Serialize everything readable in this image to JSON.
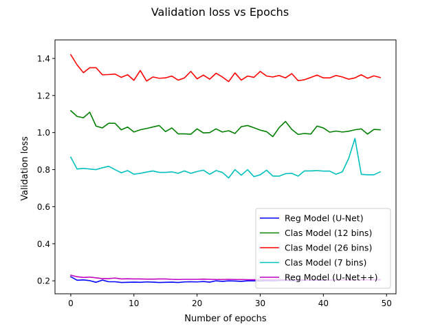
{
  "chart_data": {
    "type": "line",
    "title": "Validation loss vs Epochs",
    "xlabel": "Number of epochs",
    "ylabel": "Validation loss",
    "xlim": [
      -2.5,
      51.5
    ],
    "ylim": [
      0.13,
      1.5
    ],
    "xticks": [
      0,
      10,
      20,
      30,
      40,
      50
    ],
    "yticks": [
      0.2,
      0.4,
      0.6,
      0.8,
      1.0,
      1.2,
      1.4
    ],
    "xtick_labels": [
      "0",
      "10",
      "20",
      "30",
      "40",
      "50"
    ],
    "ytick_labels": [
      "0.2",
      "0.4",
      "0.6",
      "0.8",
      "1.0",
      "1.2",
      "1.4"
    ],
    "grid": false,
    "legend_position": "lower-right",
    "x": [
      0,
      1,
      2,
      3,
      4,
      5,
      6,
      7,
      8,
      9,
      10,
      11,
      12,
      13,
      14,
      15,
      16,
      17,
      18,
      19,
      20,
      21,
      22,
      23,
      24,
      25,
      26,
      27,
      28,
      29,
      30,
      31,
      32,
      33,
      34,
      35,
      36,
      37,
      38,
      39,
      40,
      41,
      42,
      43,
      44,
      45,
      46,
      47,
      48,
      49
    ],
    "series": [
      {
        "name": "Reg Model (U-Net)",
        "color": "#0000ff",
        "values": [
          0.222,
          0.203,
          0.205,
          0.201,
          0.192,
          0.204,
          0.195,
          0.195,
          0.191,
          0.192,
          0.193,
          0.192,
          0.194,
          0.193,
          0.191,
          0.192,
          0.193,
          0.191,
          0.194,
          0.195,
          0.194,
          0.196,
          0.193,
          0.2,
          0.197,
          0.2,
          0.199,
          0.197,
          0.2,
          0.2,
          0.199,
          0.201,
          0.2,
          0.202,
          0.203,
          0.201,
          0.202,
          0.203,
          0.203,
          0.204,
          0.203,
          0.205,
          0.204,
          0.206,
          0.205,
          0.205,
          0.206,
          0.206,
          0.207,
          0.207
        ]
      },
      {
        "name": "Clas Model (12 bins)",
        "color": "#008000",
        "values": [
          1.118,
          1.087,
          1.08,
          1.11,
          1.035,
          1.025,
          1.05,
          1.05,
          1.015,
          1.03,
          1.003,
          1.015,
          1.022,
          1.03,
          1.038,
          1.005,
          1.025,
          0.993,
          0.993,
          0.991,
          1.02,
          0.998,
          1.0,
          1.02,
          1.003,
          1.01,
          0.995,
          1.032,
          1.038,
          1.026,
          1.013,
          1.005,
          0.978,
          1.027,
          1.06,
          1.017,
          0.99,
          0.995,
          0.992,
          1.035,
          1.025,
          1.002,
          1.008,
          1.003,
          1.007,
          1.015,
          1.02,
          0.992,
          1.017,
          1.015
        ]
      },
      {
        "name": "Clas Model (26 bins)",
        "color": "#ff0000",
        "values": [
          1.42,
          1.365,
          1.323,
          1.35,
          1.35,
          1.312,
          1.313,
          1.316,
          1.298,
          1.312,
          1.282,
          1.335,
          1.278,
          1.3,
          1.293,
          1.295,
          1.305,
          1.283,
          1.295,
          1.33,
          1.29,
          1.31,
          1.288,
          1.32,
          1.3,
          1.275,
          1.322,
          1.283,
          1.305,
          1.298,
          1.33,
          1.305,
          1.3,
          1.308,
          1.295,
          1.318,
          1.28,
          1.285,
          1.297,
          1.31,
          1.295,
          1.295,
          1.308,
          1.3,
          1.288,
          1.295,
          1.312,
          1.293,
          1.306,
          1.297
        ]
      },
      {
        "name": "Clas Model (7 bins)",
        "color": "#00bfbf",
        "values": [
          0.867,
          0.803,
          0.807,
          0.803,
          0.8,
          0.81,
          0.818,
          0.8,
          0.783,
          0.795,
          0.775,
          0.78,
          0.787,
          0.793,
          0.785,
          0.785,
          0.788,
          0.78,
          0.793,
          0.78,
          0.79,
          0.797,
          0.775,
          0.795,
          0.785,
          0.755,
          0.8,
          0.77,
          0.8,
          0.762,
          0.772,
          0.797,
          0.765,
          0.765,
          0.778,
          0.78,
          0.765,
          0.793,
          0.793,
          0.795,
          0.792,
          0.792,
          0.775,
          0.788,
          0.86,
          0.968,
          0.775,
          0.772,
          0.772,
          0.788
        ]
      },
      {
        "name": "Reg Model (U-Net++)",
        "color": "#bf00bf",
        "values": [
          0.23,
          0.222,
          0.218,
          0.22,
          0.216,
          0.212,
          0.212,
          0.215,
          0.21,
          0.211,
          0.21,
          0.21,
          0.209,
          0.209,
          0.21,
          0.21,
          0.208,
          0.207,
          0.208,
          0.208,
          0.208,
          0.209,
          0.208,
          0.207,
          0.207,
          0.208,
          0.207,
          0.207,
          0.206,
          0.206,
          0.206,
          0.206,
          0.206,
          0.206,
          0.206,
          0.205,
          0.205,
          0.205,
          0.205,
          0.205,
          0.205,
          0.205,
          0.205,
          0.205,
          0.205,
          0.205,
          0.205,
          0.205,
          0.205,
          0.205
        ]
      }
    ]
  }
}
